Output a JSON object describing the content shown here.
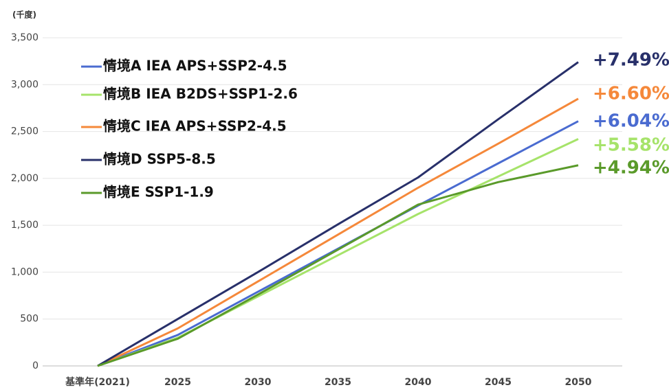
{
  "chart_data": {
    "type": "line",
    "y_axis_label": "(千度)",
    "categories": [
      "基準年(2021)",
      "2025",
      "2030",
      "2035",
      "2040",
      "2045",
      "2050"
    ],
    "ylim": [
      0,
      3500
    ],
    "yticks": [
      0,
      {
        "value": 500,
        "label": "500"
      },
      {
        "value": 1000,
        "label": "1,000"
      },
      {
        "value": 1500,
        "label": "1,500"
      },
      {
        "value": 2000,
        "label": "2,000"
      },
      {
        "value": 2500,
        "label": "2,500"
      },
      {
        "value": 3000,
        "label": "3,000"
      },
      {
        "value": 3500,
        "label": "3,500"
      }
    ],
    "grid": true,
    "legend": "upper left",
    "series": [
      {
        "name": "情境A IEA APS+SSP2-4.5",
        "color": "#4a6bd0",
        "values": [
          0,
          330,
          790,
          1250,
          1710,
          2160,
          2610
        ],
        "end_label": "+6.04%"
      },
      {
        "name": "情境B IEA B2DS+SSP1-2.6",
        "color": "#a6e36a",
        "values": [
          0,
          300,
          740,
          1180,
          1620,
          2020,
          2420
        ],
        "end_label": "+5.58%"
      },
      {
        "name": "情境C IEA APS+SSP2-4.5",
        "color": "#f5883a",
        "values": [
          0,
          400,
          900,
          1400,
          1900,
          2370,
          2850
        ],
        "end_label": "+6.60%"
      },
      {
        "name": "情境D SSP5-8.5",
        "color": "#28306a",
        "values": [
          0,
          500,
          1000,
          1510,
          2010,
          2630,
          3240
        ],
        "end_label": "+7.49%"
      },
      {
        "name": "情境E SSP1-1.9",
        "color": "#5a9a2a",
        "values": [
          0,
          290,
          760,
          1240,
          1720,
          1960,
          2140
        ],
        "end_label": "+4.94%"
      }
    ]
  }
}
